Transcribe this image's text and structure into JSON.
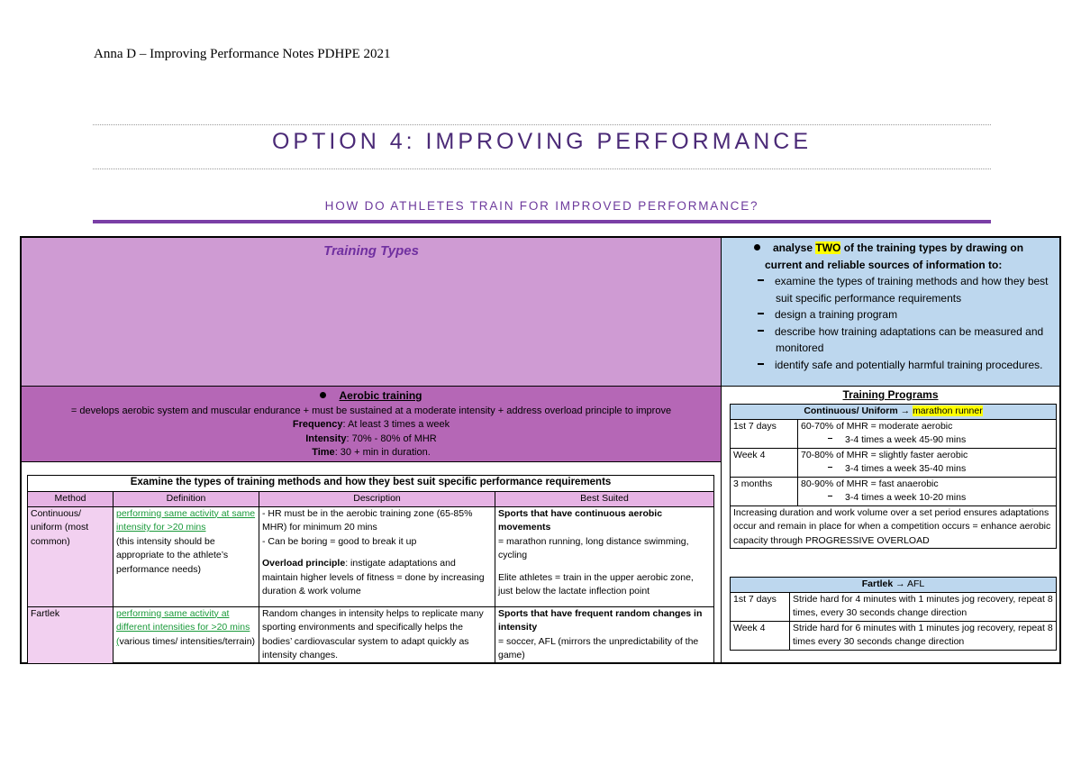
{
  "header": {
    "author_line": "Anna D – Improving Performance Notes PDHPE 2021",
    "title": "OPTION 4: IMPROVING PERFORMANCE",
    "subtitle": "HOW DO ATHLETES TRAIN FOR IMPROVED PERFORMANCE?"
  },
  "training_types": {
    "title": "Training Types"
  },
  "aerobic": {
    "heading": "Aerobic training",
    "summary": "= develops aerobic system and muscular endurance + must be sustained at a moderate intensity + address overload principle to improve",
    "frequency": {
      "label": "Frequency",
      "text": ": At least 3 times a week"
    },
    "intensity": {
      "label": "Intensity",
      "text": ": 70% - 80% of MHR"
    },
    "time": {
      "label": "Time",
      "text": ": 30 + min in duration."
    }
  },
  "methods_table": {
    "caption": "Examine the types of training methods and how they best suit specific performance requirements",
    "columns": [
      "Method",
      "Definition",
      "Description",
      "Best Suited"
    ],
    "rows": [
      {
        "method": "Continuous/ uniform (most common)",
        "definition": {
          "highlight": "performing same activity at same intensity for >20 mins",
          "text": "(this intensity should be appropriate to the athlete’s performance needs)"
        },
        "description": {
          "lines": [
            "- HR must be in the aerobic training zone (65-85% MHR) for minimum 20 mins",
            "- Can be boring = good to break it up"
          ],
          "overload_label": "Overload principle",
          "overload_text": ": instigate adaptations and maintain higher levels of fitness = done by increasing duration & work volume"
        },
        "best_suited": {
          "heading": "Sports that have continuous aerobic movements",
          "text": "= marathon running, long distance swimming, cycling",
          "note": "Elite athletes = train in the upper aerobic zone, just below the lactate inflection point"
        }
      },
      {
        "method": "Fartlek",
        "definition": {
          "highlight": "performing same activity at different intensities for >20 mins (",
          "text": "various times/ intensities/terrain)"
        },
        "description": {
          "text": "Random changes in intensity helps to replicate many sporting environments and specifically helps the bodies’ cardiovascular system to adapt quickly as intensity changes."
        },
        "best_suited": {
          "heading": "Sports that have frequent random changes in intensity",
          "text": "= soccer, AFL (mirrors the unpredictability of the game)"
        }
      }
    ]
  },
  "syllabus": {
    "outcome_pre": "analyse ",
    "outcome_highlight": "TWO",
    "outcome_post": " of the training types by drawing on current and reliable sources of information to:",
    "items": [
      "examine the types of training methods and how they best suit specific performance requirements",
      "design a training program",
      "describe how training adaptations can be measured and monitored",
      "identify safe and potentially harmful training procedures."
    ]
  },
  "programs": {
    "title": "Training Programs",
    "continuous": {
      "heading": "Continuous/ Uniform",
      "arrow": " → ",
      "sport": "marathon runner",
      "rows": [
        {
          "period": "1st 7 days",
          "intensity": "60-70% of MHR = moderate aerobic",
          "volume": "3-4 times a week 45-90 mins"
        },
        {
          "period": "Week 4",
          "intensity": "70-80% of MHR = slightly faster aerobic",
          "volume": "3-4 times a week 35-40 mins"
        },
        {
          "period": "3 months",
          "intensity": "80-90% of MHR = fast anaerobic",
          "volume": "3-4 times a week 10-20 mins"
        }
      ],
      "note": "Increasing duration and work volume over a set period ensures adaptations occur and remain in place for when a competition occurs = enhance aerobic capacity through PROGRESSIVE OVERLOAD"
    },
    "fartlek": {
      "heading": "Fartlek",
      "arrow": " → ",
      "sport": "AFL",
      "rows": [
        {
          "period": "1st 7 days",
          "detail": "Stride hard for 4 minutes with 1 minutes jog recovery, repeat 8 times, every 30 seconds change direction"
        },
        {
          "period": "Week 4",
          "detail": "Stride hard for 6 minutes with 1 minutes jog recovery, repeat 8 times every 30 seconds change direction"
        }
      ]
    }
  }
}
